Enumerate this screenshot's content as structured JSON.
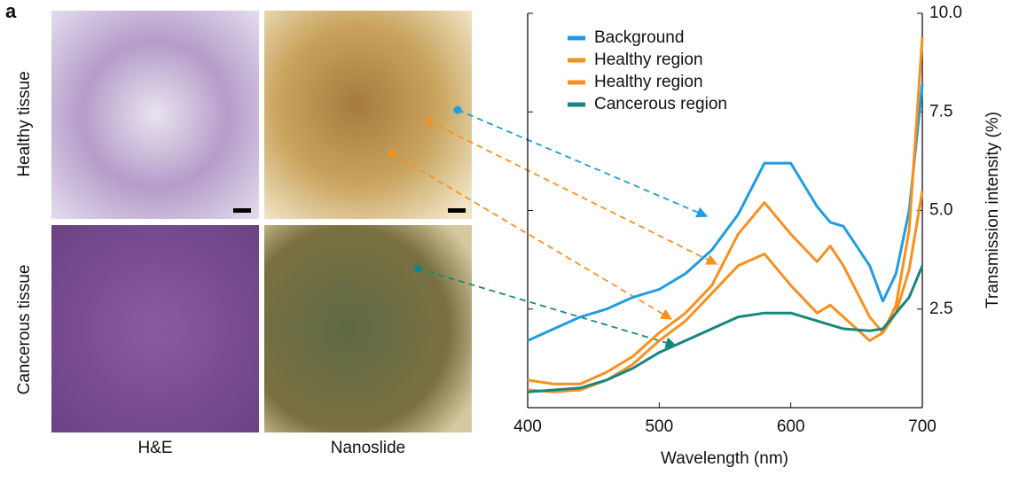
{
  "panel_label": "a",
  "row_labels": [
    "Healthy tissue",
    "Cancerous tissue"
  ],
  "column_labels": [
    "H&E",
    "Nanoslide"
  ],
  "chart_data": {
    "type": "line",
    "x_label": "Wavelength (nm)",
    "y_label": "Transmission intensity (%)",
    "x": [
      400,
      420,
      440,
      460,
      480,
      500,
      520,
      540,
      560,
      580,
      600,
      620,
      630,
      640,
      660,
      670,
      680,
      690,
      700
    ],
    "series": [
      {
        "name": "Background",
        "color": "#1f9ddf",
        "values": [
          1.7,
          2.0,
          2.3,
          2.5,
          2.8,
          3.0,
          3.4,
          4.0,
          4.9,
          6.2,
          6.2,
          5.1,
          4.7,
          4.6,
          3.6,
          2.7,
          3.4,
          5.0,
          8.2
        ]
      },
      {
        "name": "Healthy region",
        "color": "#f7901e",
        "values": [
          0.7,
          0.6,
          0.6,
          0.9,
          1.3,
          1.9,
          2.4,
          3.1,
          4.4,
          5.2,
          4.4,
          3.7,
          4.1,
          3.6,
          2.3,
          1.9,
          2.6,
          4.5,
          9.4
        ]
      },
      {
        "name": "Healthy region",
        "color": "#f7901e",
        "values": [
          0.45,
          0.4,
          0.45,
          0.7,
          1.1,
          1.7,
          2.2,
          2.9,
          3.6,
          3.9,
          3.1,
          2.4,
          2.6,
          2.3,
          1.7,
          1.9,
          2.4,
          3.5,
          5.5
        ]
      },
      {
        "name": "Cancerous region",
        "color": "#16867f",
        "values": [
          0.4,
          0.45,
          0.5,
          0.7,
          1.0,
          1.4,
          1.7,
          2.0,
          2.3,
          2.4,
          2.4,
          2.2,
          2.1,
          2.0,
          1.95,
          2.0,
          2.4,
          2.8,
          3.6
        ]
      }
    ],
    "xlim": [
      400,
      700
    ],
    "xticks": [
      400,
      500,
      600,
      700
    ],
    "ylim": [
      0,
      10
    ],
    "yticks": [
      {
        "value": 2.5,
        "label": "2.5"
      },
      {
        "value": 5,
        "label": "5.0"
      },
      7.5,
      {
        "value": 10,
        "label": "10.0"
      }
    ],
    "legend": "upper left",
    "grid": false
  }
}
